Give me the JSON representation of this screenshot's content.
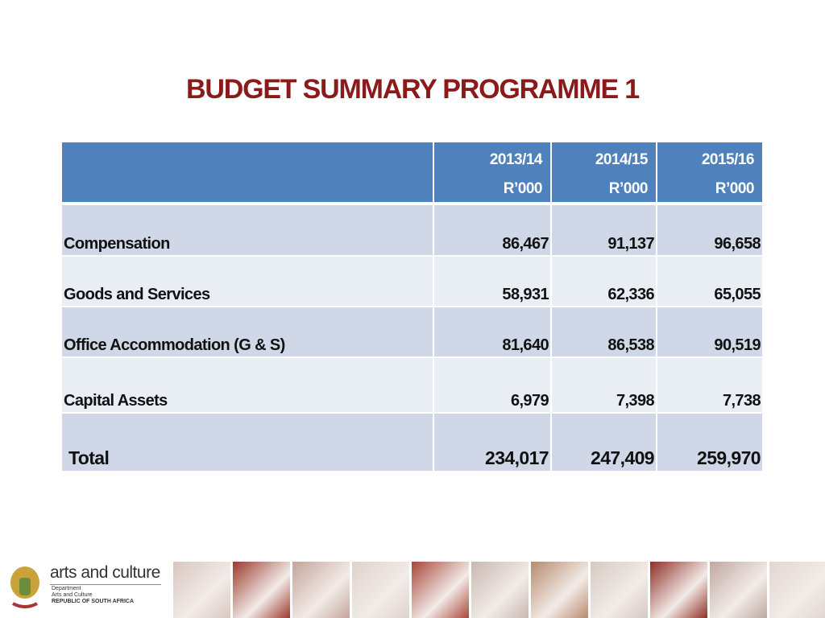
{
  "header": {
    "title": "BUDGET SUMMARY PROGRAMME 1"
  },
  "table": {
    "columns": [
      {
        "year": "2013/14",
        "unit": "R’000"
      },
      {
        "year": "2014/15",
        "unit": "R’000"
      },
      {
        "year": "2015/16",
        "unit": "R’000"
      }
    ],
    "rows": [
      [
        "Compensation",
        "86,467",
        "91,137",
        "96,658"
      ],
      [
        "Goods and Services",
        "58,931",
        "62,336",
        "65,055"
      ],
      [
        "Office Accommodation (G & S)",
        "81,640",
        "86,538",
        "90,519"
      ],
      [
        "Capital Assets",
        "6,979",
        "7,398",
        "7,738"
      ],
      [
        "Total",
        "234,017",
        "247,409",
        "259,970"
      ]
    ]
  },
  "footer": {
    "brand": "arts and culture",
    "dept_line1": "Department",
    "dept_line2": "Arts and Culture",
    "country": "REPUBLIC OF SOUTH AFRICA"
  }
}
